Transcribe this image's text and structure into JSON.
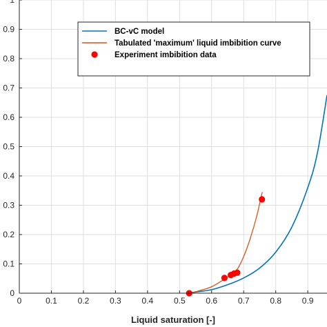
{
  "chart_data": {
    "type": "line",
    "title": "",
    "xlabel": "Liquid saturation [-]",
    "ylabel": "",
    "xlim": [
      0,
      0.96
    ],
    "ylim": [
      0,
      1.0
    ],
    "x_ticks": [
      "0",
      "0.1",
      "0.2",
      "0.3",
      "0.4",
      "0.5",
      "0.6",
      "0.7",
      "0.8",
      "0.9"
    ],
    "y_ticks": [
      "0",
      "0.1",
      "0.2",
      "0.3",
      "0.4",
      "0.5",
      "0.6",
      "0.7",
      "0.8",
      "0.9",
      "1"
    ],
    "grid": true,
    "legend_position": "top-right",
    "colors": {
      "bc_vc": "#0072BD",
      "tabulated": "#D95319",
      "experiment": "#FF0000"
    },
    "series": [
      {
        "name": "BC-vC model",
        "type": "line",
        "x": [
          0.52,
          0.55,
          0.6,
          0.65,
          0.7,
          0.75,
          0.8,
          0.85,
          0.9,
          0.93,
          0.96
        ],
        "y": [
          0.0,
          0.004,
          0.012,
          0.029,
          0.052,
          0.086,
          0.14,
          0.225,
          0.36,
          0.478,
          0.675
        ]
      },
      {
        "name": "Tabulated 'maximum' liquid imbibition curve",
        "type": "line",
        "x": [
          0.53,
          0.56,
          0.6,
          0.64,
          0.66,
          0.68,
          0.7,
          0.72,
          0.74,
          0.758
        ],
        "y": [
          0.0,
          0.008,
          0.022,
          0.048,
          0.062,
          0.082,
          0.125,
          0.185,
          0.26,
          0.345
        ]
      },
      {
        "name": "Experiment imbibition data",
        "type": "scatter",
        "x": [
          0.53,
          0.64,
          0.66,
          0.67,
          0.68,
          0.757
        ],
        "y": [
          0.0,
          0.052,
          0.062,
          0.067,
          0.07,
          0.32
        ]
      }
    ]
  }
}
